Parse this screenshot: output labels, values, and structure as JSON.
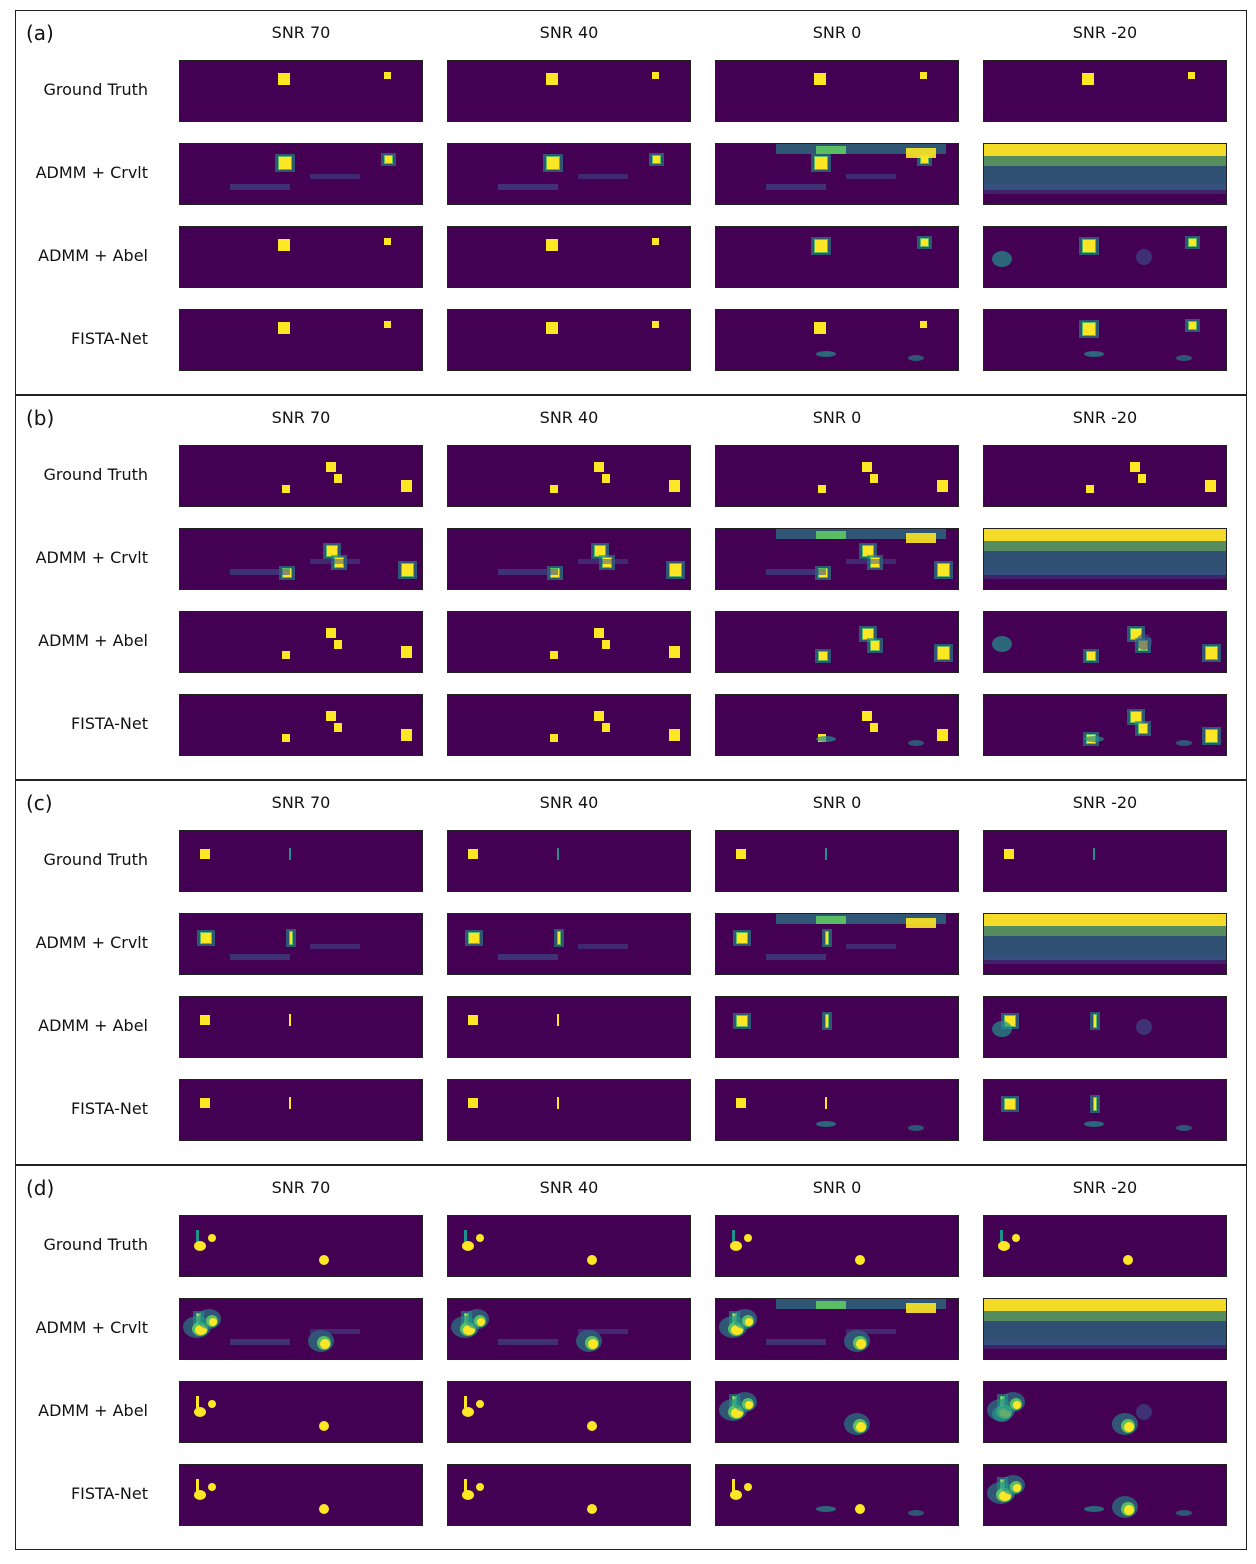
{
  "figure": {
    "columns": [
      "SNR 70",
      "SNR 40",
      "SNR 0",
      "SNR -20"
    ],
    "rows": [
      "Ground Truth",
      "ADMM + Crvlt",
      "ADMM + Abel",
      "FISTA-Net"
    ],
    "panels": [
      {
        "label": "(a)"
      },
      {
        "label": "(b)"
      },
      {
        "label": "(c)"
      },
      {
        "label": "(d)"
      }
    ],
    "colormap": {
      "background": "#440154",
      "low": "#3b528b",
      "mid": "#21918c",
      "high": "#5ec962",
      "peak": "#fde725"
    }
  }
}
